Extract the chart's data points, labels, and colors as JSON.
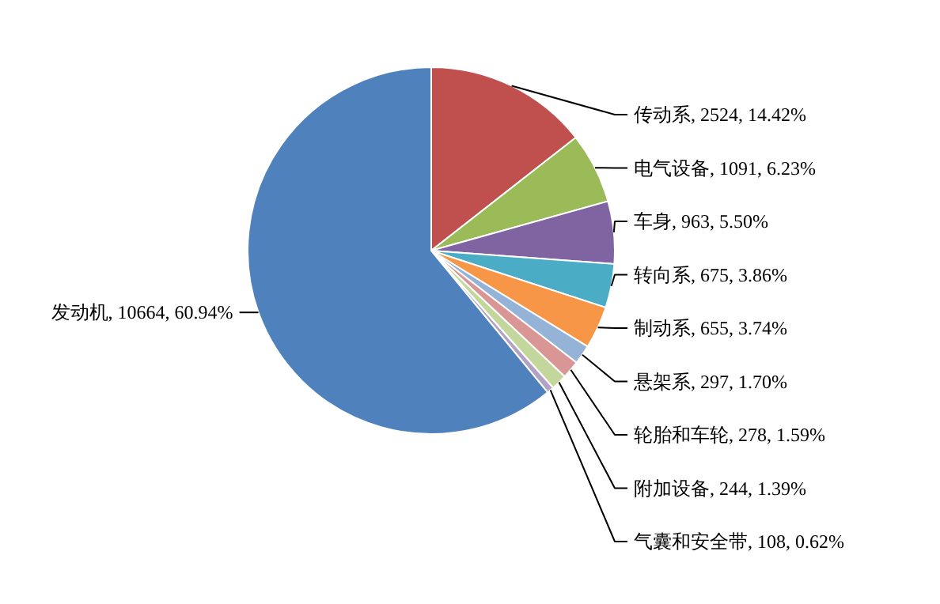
{
  "chart_data": {
    "type": "pie",
    "categories": [
      "传动系",
      "电气设备",
      "车身",
      "转向系",
      "制动系",
      "悬架系",
      "轮胎和车轮",
      "附加设备",
      "气囊和安全带",
      "发动机"
    ],
    "values": [
      2524,
      1091,
      963,
      675,
      655,
      297,
      278,
      244,
      108,
      10664
    ],
    "colors": [
      "#c0504d",
      "#9bbb59",
      "#8064a2",
      "#4bacc6",
      "#f79646",
      "#95b3d7",
      "#d99694",
      "#c3d69b",
      "#b3a2c7",
      "#4f81bd"
    ],
    "value_labels": [
      "2524, 14.42%",
      "1091, 6.23%",
      "963, 5.50%",
      "675, 3.86%",
      "655, 3.74%",
      "297, 1.70%",
      "278, 1.59%",
      "244, 1.39%",
      "108, 0.62%",
      "10664, 60.94%"
    ]
  }
}
